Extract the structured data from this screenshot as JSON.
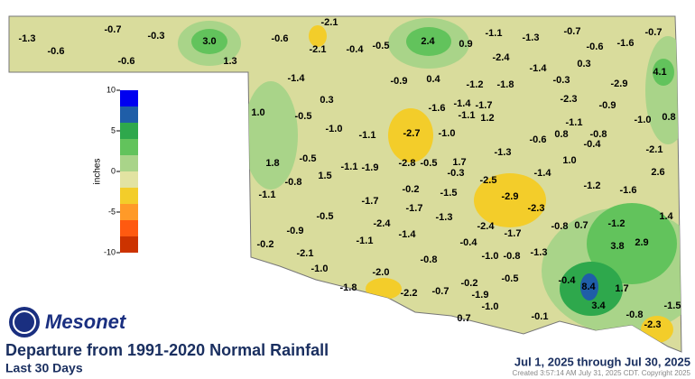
{
  "header": {
    "logo": "Mesonet",
    "title": "Departure from 1991-2020 Normal Rainfall",
    "subtitle": "Last 30 Days",
    "date_range": "Jul 1, 2025 through Jul 30, 2025",
    "created": "Created 3:57:14 AM July 31, 2025 CDT. Copyright 2025"
  },
  "colorbar": {
    "label": "inches",
    "lim": [
      -10,
      10
    ],
    "ticks": [
      10,
      5,
      0,
      -5,
      -10
    ],
    "colors": [
      "#cc3300",
      "#ff5a10",
      "#ff9a28",
      "#f3cd2a",
      "#e2e3a2",
      "#a9d489",
      "#62c35c",
      "#2ea84c",
      "#1f5ea8",
      "#0000f0"
    ]
  },
  "map": {
    "fill": "#d9dc9c",
    "values": [
      -1.3,
      -0.6,
      -0.7,
      -0.3,
      -0.6,
      3.0,
      1.3,
      -0.6,
      -2.1,
      -2.1,
      -0.4,
      -0.5,
      2.4,
      0.9,
      -1.1,
      -1.3,
      -0.7,
      -0.6,
      -1.6,
      -0.7,
      -2.4,
      0.3,
      -1.4,
      -0.3,
      -2.9,
      4.1,
      -1.4,
      -0.9,
      0.4,
      -1.2,
      -1.8,
      -2.3,
      0.3,
      -1.6,
      -1.4,
      -1.7,
      -1.1,
      1.2,
      -0.9,
      1.0,
      -0.5,
      -1.1,
      -1.0,
      0.8,
      -1.0,
      -1.1,
      -2.7,
      -1.0,
      0.8,
      -0.8,
      -0.6,
      -0.4,
      -2.1,
      -1.3,
      -0.5,
      1.7,
      1.8,
      -1.1,
      -1.9,
      -2.8,
      -0.5,
      -0.3,
      1.0,
      -1.4,
      2.6,
      -0.8,
      1.5,
      -2.5,
      -1.2,
      -1.6,
      -1.1,
      -0.2,
      -1.5,
      -1.7,
      -2.9,
      -1.7,
      -2.3,
      1.4,
      -0.5,
      -1.3,
      -2.4,
      -0.8,
      0.7,
      -1.2,
      -2.4,
      -1.7,
      -0.9,
      -1.4,
      -1.1,
      -0.4,
      3.8,
      2.9,
      -0.2,
      -1.3,
      -2.1,
      -1.0,
      -0.8,
      -0.8,
      -1.0,
      -2.0,
      -0.5,
      -0.2,
      -0.4,
      8.4,
      1.7,
      -1.8,
      -2.2,
      -0.7,
      -1.9,
      -1.0,
      3.4,
      -1.5,
      0.7,
      -0.1,
      -0.8,
      -2.3
    ],
    "value_labels": [
      "-1.3",
      "-0.6",
      "-0.7",
      "-0.3",
      "-0.6",
      "3.0",
      "1.3",
      "-0.6",
      "-2.1",
      "-2.1",
      "-0.4",
      "-0.5",
      "2.4",
      "0.9",
      "-1.1",
      "-1.3",
      "-0.7",
      "-0.6",
      "-1.6",
      "-0.7",
      "-2.4",
      "0.3",
      "-1.4",
      "-0.3",
      "-2.9",
      "4.1",
      "-1.4",
      "-0.9",
      "0.4",
      "-1.2",
      "-1.8",
      "-2.3",
      "0.3",
      "-1.6",
      "-1.4",
      "-1.7",
      "-1.1",
      "1.2",
      "-0.9",
      "1.0",
      "-0.5",
      "-1.1",
      "-1.0",
      "0.8",
      "-1.0",
      "-1.1",
      "-2.7",
      "-1.0",
      "0.8",
      "-0.8",
      "-0.6",
      "-0.4",
      "-2.1",
      "-1.3",
      "-0.5",
      "1.7",
      "1.8",
      "-1.1",
      "-1.9",
      "-2.8",
      "-0.5",
      "-0.3",
      "1.0",
      "-1.4",
      "2.6",
      "-0.8",
      "1.5",
      "-2.5",
      "-1.2",
      "-1.6",
      "-1.1",
      "-0.2",
      "-1.5",
      "-1.7",
      "-2.9",
      "-1.7",
      "-2.3",
      "1.4",
      "-0.5",
      "-1.3",
      "-2.4",
      "-0.8",
      "0.7",
      "-1.2",
      "-2.4",
      "-1.7",
      "-0.9",
      "-1.4",
      "-1.1",
      "-0.4",
      "3.8",
      "2.9",
      "-0.2",
      "-1.3",
      "-2.1",
      "-1.0",
      "-0.8",
      "-0.8",
      "-1.0",
      "-2.0",
      "-0.5",
      "-0.2",
      "-0.4",
      "8.4",
      "1.7",
      "-1.8",
      "-2.2",
      "-0.7",
      "-1.9",
      "-1.0",
      "3.4",
      "-1.5",
      "0.7",
      "-0.1",
      "-0.8",
      "-2.3"
    ]
  }
}
